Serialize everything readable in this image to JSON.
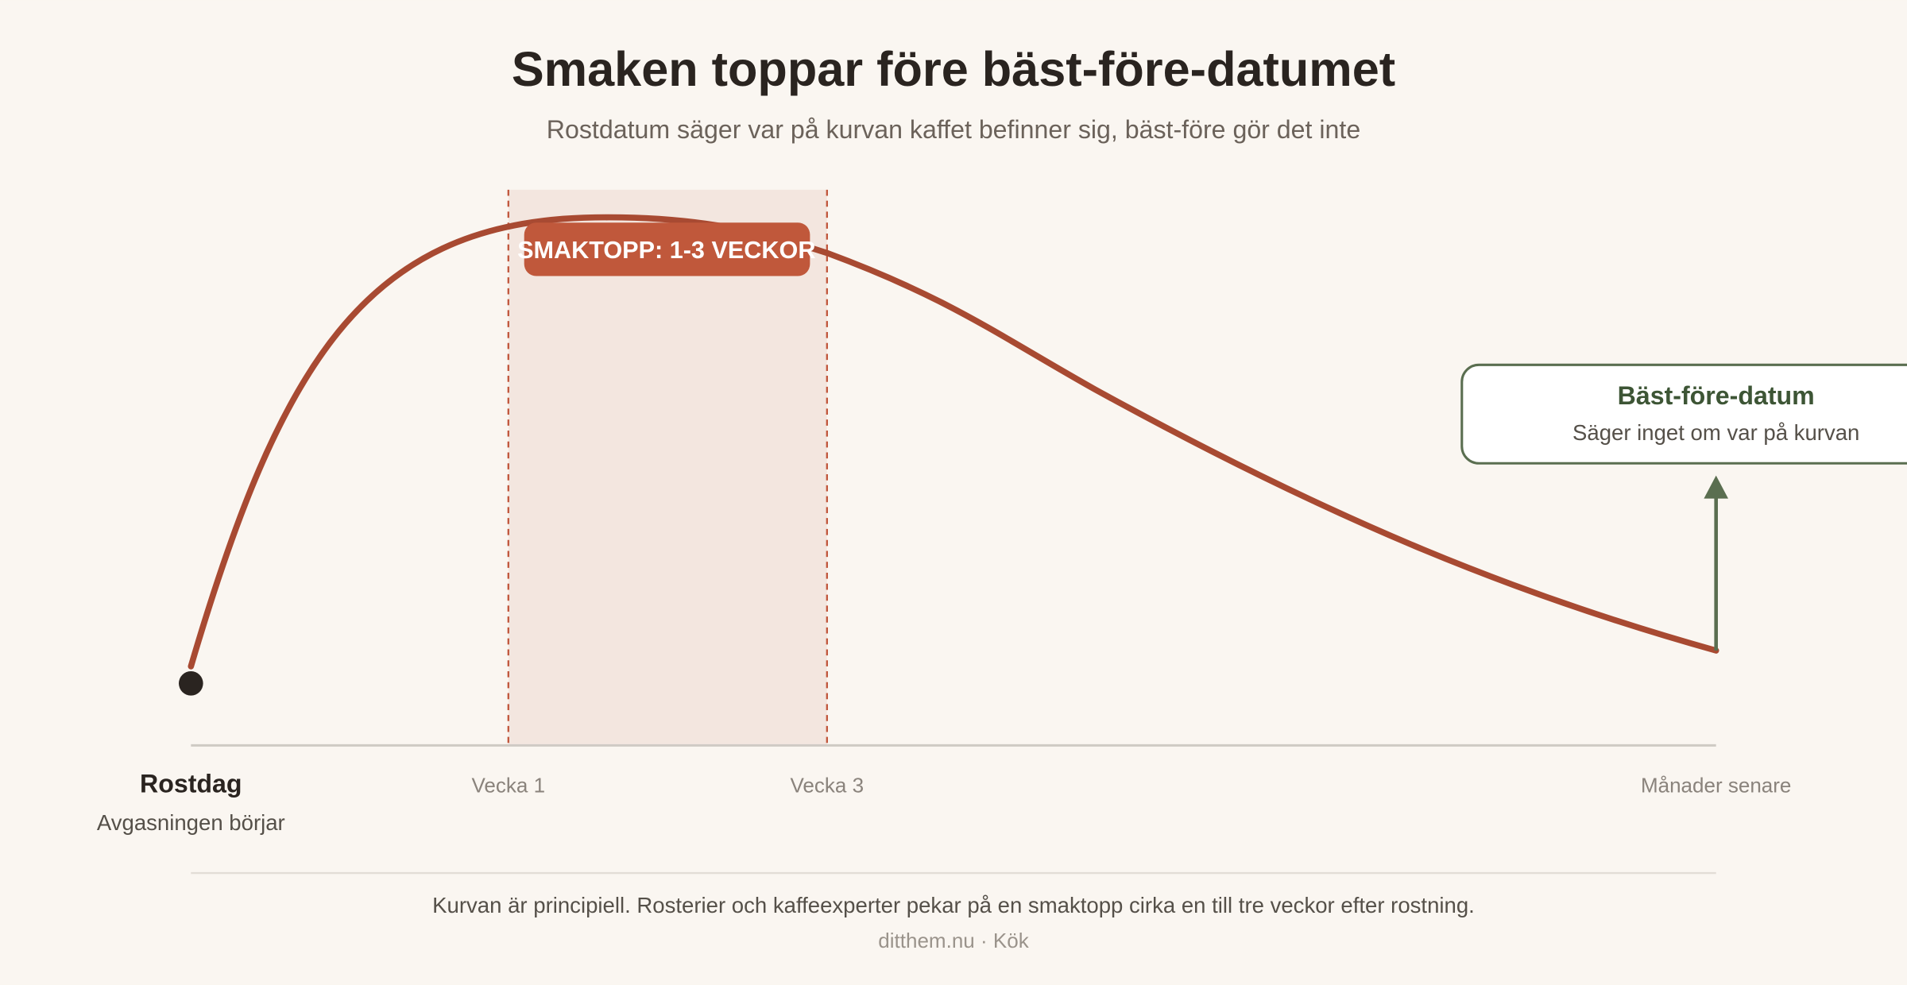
{
  "header": {
    "title": "Smaken toppar före bäst-före-datumet",
    "subtitle": "Rostdatum säger var på kurvan kaffet befinner sig, bäst-före gör det inte"
  },
  "peak_label": "SMAKTOPP: 1-3 VECKOR",
  "x_labels": [
    "Rostdag",
    "Vecka 1",
    "Vecka 3",
    "Månader senare"
  ],
  "start_note": "Avgasningen börjar",
  "callout": {
    "title": "Bäst-före-datum",
    "text": "Säger inget om var på kurvan"
  },
  "footer": {
    "note": "Kurvan är principiell. Rosterier och kaffeexperter pekar på en smaktopp cirka en till tre veckor efter rostning.",
    "source": "ditthem.nu · Kök"
  }
}
